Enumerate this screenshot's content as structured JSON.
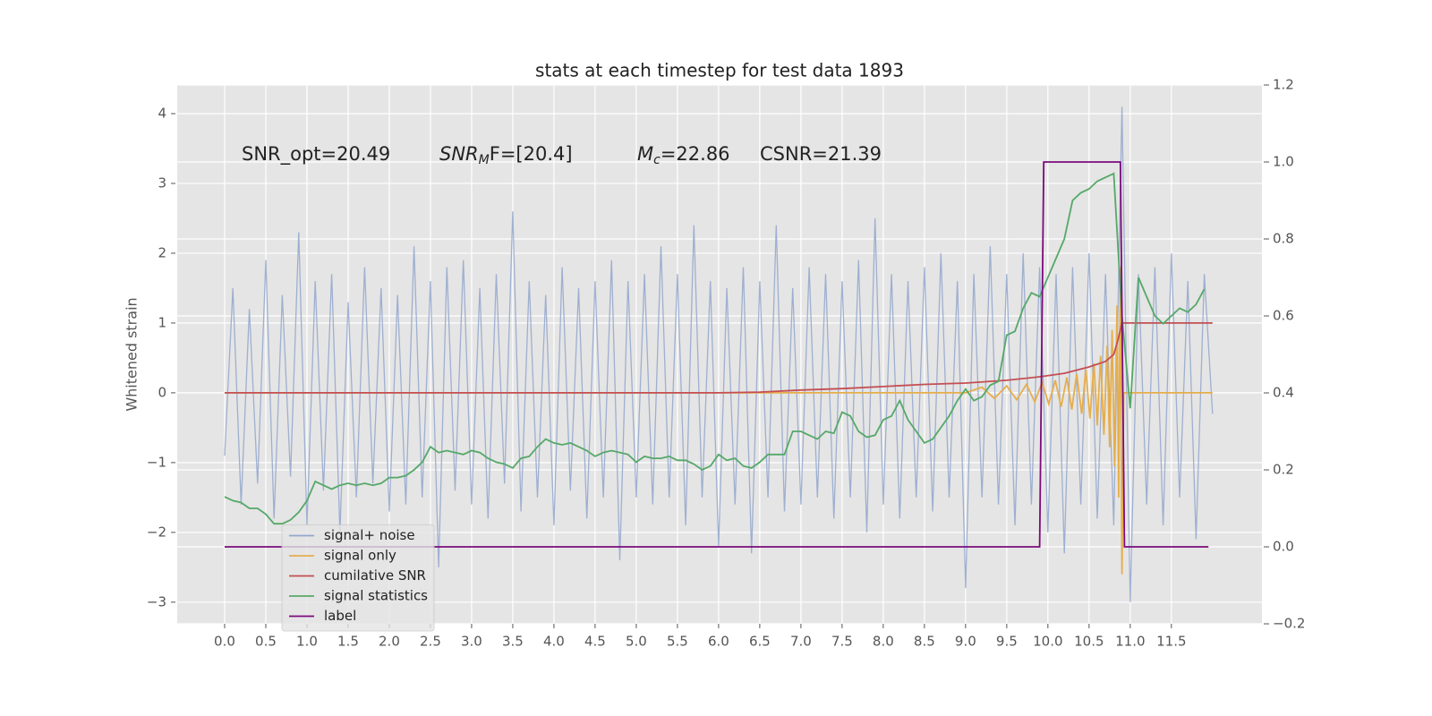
{
  "chart_data": {
    "type": "line",
    "title": "stats at each timestep for test data 1893",
    "ylabel": "Whitened strain",
    "annotations": [
      {
        "text": "SNR_opt=20.49"
      },
      {
        "base": "SNR",
        "sub": "M",
        "tail": "F=[20.4]"
      },
      {
        "base": "M",
        "sub": "c",
        "tail": "=22.86"
      },
      {
        "text": "CSNR=21.39"
      }
    ],
    "x": [
      0,
      0.1,
      0.2,
      0.3,
      0.4,
      0.5,
      0.6,
      0.7,
      0.8,
      0.9,
      1.0,
      1.1,
      1.2,
      1.3,
      1.4,
      1.5,
      1.6,
      1.7,
      1.8,
      1.9,
      2.0,
      2.1,
      2.2,
      2.3,
      2.4,
      2.5,
      2.6,
      2.7,
      2.8,
      2.9,
      3.0,
      3.1,
      3.2,
      3.3,
      3.4,
      3.5,
      3.6,
      3.7,
      3.8,
      3.9,
      4.0,
      4.1,
      4.2,
      4.3,
      4.4,
      4.5,
      4.6,
      4.7,
      4.8,
      4.9,
      5.0,
      5.1,
      5.2,
      5.3,
      5.4,
      5.5,
      5.6,
      5.7,
      5.8,
      5.9,
      6.0,
      6.1,
      6.2,
      6.3,
      6.4,
      6.5,
      6.6,
      6.7,
      6.8,
      6.9,
      7.0,
      7.1,
      7.2,
      7.3,
      7.4,
      7.5,
      7.6,
      7.7,
      7.8,
      7.9,
      8.0,
      8.1,
      8.2,
      8.3,
      8.4,
      8.5,
      8.6,
      8.7,
      8.8,
      8.9,
      9.0,
      9.1,
      9.2,
      9.3,
      9.4,
      9.5,
      9.6,
      9.7,
      9.8,
      9.9,
      10.0,
      10.1,
      10.2,
      10.3,
      10.4,
      10.5,
      10.6,
      10.7,
      10.8,
      10.9,
      11.0,
      11.1,
      11.2,
      11.3,
      11.4,
      11.5,
      11.6,
      11.7,
      11.8,
      11.9,
      12.0
    ],
    "series": [
      {
        "name": "signal+ noise",
        "color": "#92a6cc",
        "values": [
          -0.9,
          1.5,
          -1.6,
          1.2,
          -1.3,
          1.9,
          -1.8,
          1.4,
          -1.2,
          2.3,
          -1.9,
          1.6,
          -1.4,
          1.7,
          -2.0,
          1.3,
          -1.5,
          1.8,
          -1.3,
          1.5,
          -1.7,
          1.4,
          -1.6,
          2.1,
          -1.5,
          1.6,
          -2.5,
          1.8,
          -1.4,
          1.9,
          -1.6,
          1.5,
          -1.8,
          1.7,
          -1.3,
          2.6,
          -1.7,
          1.6,
          -1.5,
          1.4,
          -1.9,
          1.8,
          -1.4,
          1.5,
          -1.8,
          1.6,
          -1.5,
          1.9,
          -2.4,
          1.6,
          -1.5,
          1.7,
          -1.6,
          2.1,
          -1.5,
          1.7,
          -1.9,
          2.4,
          -1.5,
          1.6,
          -2.2,
          1.5,
          -1.6,
          1.8,
          -2.3,
          1.6,
          -1.5,
          2.4,
          -1.7,
          1.5,
          -1.6,
          1.8,
          -1.5,
          1.7,
          -1.8,
          1.6,
          -1.5,
          1.9,
          -2.0,
          2.5,
          -1.6,
          1.7,
          -1.8,
          1.6,
          -1.5,
          1.8,
          -1.7,
          2.0,
          -1.5,
          1.6,
          -2.8,
          1.7,
          -1.5,
          2.1,
          -1.6,
          1.7,
          -1.9,
          2.0,
          -1.6,
          1.8,
          -2.0,
          1.7,
          -2.3,
          1.8,
          -1.6,
          2.0,
          -1.8,
          1.7,
          -1.9,
          4.1,
          -3.0,
          1.7,
          -1.6,
          1.8,
          -1.9,
          2.0,
          -1.5,
          1.6,
          -2.1,
          1.7,
          -0.3
        ]
      },
      {
        "name": "signal only",
        "color": "#e5ae4c",
        "x": [
          0,
          9.0,
          9.2,
          9.35,
          9.5,
          9.62,
          9.74,
          9.84,
          9.93,
          10.01,
          10.09,
          10.16,
          10.23,
          10.29,
          10.35,
          10.41,
          10.46,
          10.51,
          10.56,
          10.6,
          10.64,
          10.68,
          10.72,
          10.75,
          10.78,
          10.81,
          10.84,
          10.86,
          10.88,
          10.9,
          10.92,
          12.0
        ],
        "values": [
          0,
          0,
          0.08,
          -0.08,
          0.1,
          -0.1,
          0.12,
          -0.13,
          0.15,
          -0.16,
          0.18,
          -0.2,
          0.22,
          -0.24,
          0.27,
          -0.3,
          0.33,
          -0.37,
          0.42,
          -0.47,
          0.53,
          -0.6,
          0.68,
          -0.78,
          0.9,
          -1.05,
          1.25,
          -1.5,
          1.8,
          -2.6,
          0,
          0
        ]
      },
      {
        "name": "cumilative SNR",
        "color": "#c44e52",
        "x": [
          0,
          6.0,
          6.5,
          7.0,
          7.5,
          8.0,
          8.5,
          9.0,
          9.5,
          9.9,
          10.2,
          10.5,
          10.7,
          10.8,
          10.85,
          10.9,
          12.0
        ],
        "values": [
          0,
          0,
          0.01,
          0.04,
          0.06,
          0.09,
          0.12,
          0.14,
          0.18,
          0.23,
          0.28,
          0.37,
          0.45,
          0.55,
          0.75,
          1.0,
          1.0
        ]
      },
      {
        "name": "signal statistics",
        "color": "#55a868",
        "axis": "y2",
        "values": [
          0.13,
          0.12,
          0.115,
          0.1,
          0.1,
          0.085,
          0.06,
          0.06,
          0.07,
          0.09,
          0.12,
          0.17,
          0.16,
          0.15,
          0.16,
          0.165,
          0.16,
          0.165,
          0.16,
          0.165,
          0.18,
          0.18,
          0.185,
          0.2,
          0.22,
          0.26,
          0.245,
          0.25,
          0.245,
          0.24,
          0.25,
          0.245,
          0.23,
          0.22,
          0.215,
          0.205,
          0.23,
          0.235,
          0.26,
          0.28,
          0.27,
          0.265,
          0.27,
          0.26,
          0.25,
          0.235,
          0.245,
          0.25,
          0.245,
          0.24,
          0.22,
          0.235,
          0.23,
          0.23,
          0.235,
          0.225,
          0.225,
          0.215,
          0.2,
          0.21,
          0.24,
          0.225,
          0.23,
          0.21,
          0.205,
          0.22,
          0.24,
          0.24,
          0.24,
          0.3,
          0.3,
          0.29,
          0.28,
          0.3,
          0.295,
          0.35,
          0.34,
          0.3,
          0.285,
          0.29,
          0.33,
          0.34,
          0.38,
          0.33,
          0.3,
          0.27,
          0.28,
          0.31,
          0.34,
          0.38,
          0.41,
          0.38,
          0.39,
          0.42,
          0.43,
          0.55,
          0.56,
          0.62,
          0.66,
          0.65,
          0.7,
          0.75,
          0.8,
          0.9,
          0.92,
          0.93,
          0.95,
          0.96,
          0.97,
          0.6,
          0.36,
          0.7,
          0.65,
          0.6,
          0.58,
          0.6,
          0.62,
          0.61,
          0.63,
          0.67,
          null
        ]
      },
      {
        "name": "label",
        "color": "#7b0a7b",
        "axis": "y2",
        "x": [
          0,
          9.9,
          9.95,
          10.88,
          10.93,
          11.95
        ],
        "values": [
          0,
          0,
          1,
          1,
          0,
          0
        ]
      }
    ],
    "xlim": [
      -0.576,
      12.6
    ],
    "xticks": [
      {
        "value": 0,
        "label": "0.0"
      },
      0.5,
      {
        "value": 1,
        "label": "1.0"
      },
      1.5,
      {
        "value": 2,
        "label": "2.0"
      },
      2.5,
      {
        "value": 3,
        "label": "3.0"
      },
      3.5,
      {
        "value": 4,
        "label": "4.0"
      },
      4.5,
      {
        "value": 5,
        "label": "5.0"
      },
      5.5,
      {
        "value": 6,
        "label": "6.0"
      },
      6.5,
      {
        "value": 7,
        "label": "7.0"
      },
      7.5,
      {
        "value": 8,
        "label": "8.0"
      },
      8.5,
      {
        "value": 9,
        "label": "9.0"
      },
      9.5,
      {
        "value": 10,
        "label": "10.0"
      },
      10.5,
      {
        "value": 11,
        "label": "11.0"
      },
      11.5
    ],
    "ylim": [
      -3.31,
      4.41
    ],
    "yticks": [
      {
        "value": -3,
        "label": "−3"
      },
      {
        "value": -2,
        "label": "−2"
      },
      {
        "value": -1,
        "label": "−1"
      },
      0,
      1,
      2,
      3,
      4
    ],
    "y2lim": [
      -0.2,
      1.2
    ],
    "y2ticks": [
      {
        "value": -0.2,
        "label": "−0.2"
      },
      0.2,
      {
        "value": 0,
        "label": "0.0"
      },
      0.4,
      0.6,
      0.8,
      {
        "value": 1,
        "label": "1.0"
      },
      1.2
    ],
    "grid": true,
    "legend": "lower left"
  }
}
